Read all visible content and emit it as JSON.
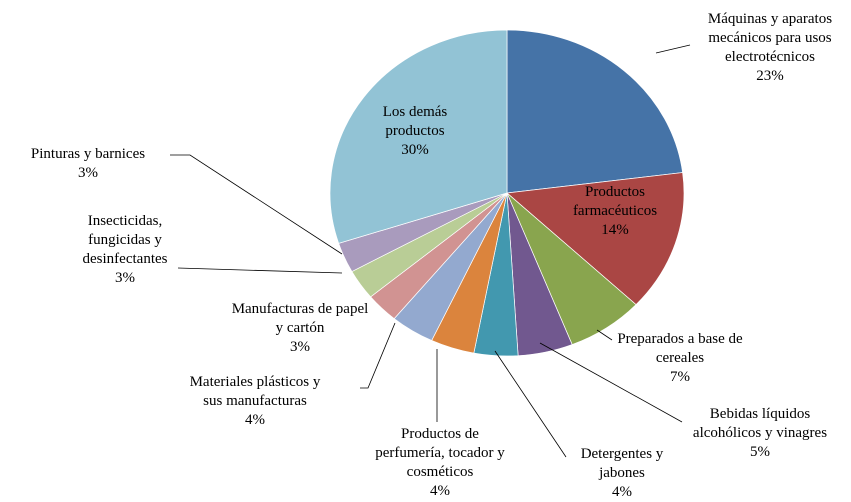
{
  "chart_data": {
    "type": "pie",
    "categories": [
      "Máquinas y aparatos mecánicos para usos electrotécnicos",
      "Productos farmacéuticos",
      "Preparados a base de cereales",
      "Bebidas líquidos alcohólicos y vinagres",
      "Detergentes y jabones",
      "Productos de perfumería, tocador y cosméticos",
      "Materiales plásticos y sus manufacturas",
      "Manufacturas de papel y cartón",
      "Insecticidas, fungicidas y desinfectantes",
      "Pinturas y barnices",
      "Los demás productos"
    ],
    "values": [
      23,
      14,
      7,
      5,
      4,
      4,
      4,
      3,
      3,
      3,
      30
    ],
    "value_labels": [
      "23%",
      "14%",
      "7%",
      "5%",
      "4%",
      "4%",
      "4%",
      "3%",
      "3%",
      "3%",
      "30%"
    ],
    "colors": [
      "#4573a7",
      "#aa4644",
      "#89a54e",
      "#71588f",
      "#4298af",
      "#db843d",
      "#93a9cf",
      "#d19392",
      "#b9cd96",
      "#a99bbd",
      "#92c3d5"
    ]
  }
}
